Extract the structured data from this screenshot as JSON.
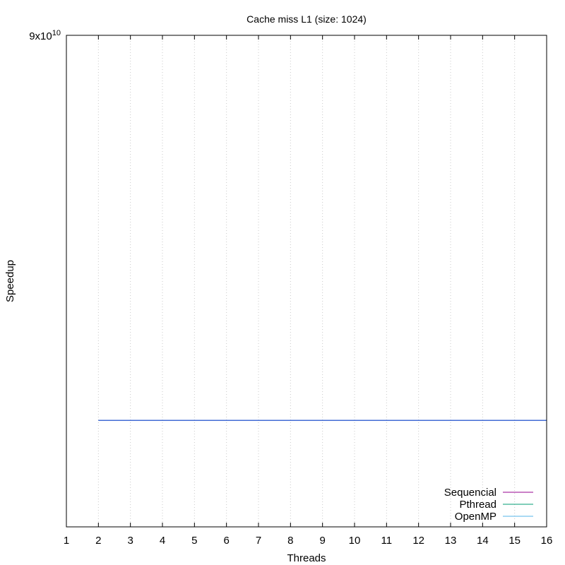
{
  "chart_data": {
    "type": "line",
    "title": "Cache miss L1 (size: 1024)",
    "xlabel": "Threads",
    "ylabel": "Speedup",
    "xlim": [
      1,
      16
    ],
    "ylim": [
      0,
      90000000000
    ],
    "x_ticks": [
      1,
      2,
      3,
      4,
      5,
      6,
      7,
      8,
      9,
      10,
      11,
      12,
      13,
      14,
      15,
      16
    ],
    "y_top_label": {
      "mantissa": "9x10",
      "exponent": "10"
    },
    "grid": {
      "x": true,
      "y": false
    },
    "legend_position": "bottom-right",
    "series": [
      {
        "name": "Sequencial",
        "color": "#94008f",
        "x": [
          2,
          16
        ],
        "y": [
          19500000000,
          19500000000
        ]
      },
      {
        "name": "Pthread",
        "color": "#009e73",
        "x": [
          2,
          16
        ],
        "y": [
          19500000000,
          19500000000
        ]
      },
      {
        "name": "OpenMP",
        "color": "#56b4e9",
        "x": [
          2,
          16
        ],
        "y": [
          19500000000,
          19500000000
        ]
      }
    ],
    "overlay_line": {
      "color": "#3b5bdb",
      "x": [
        2,
        16
      ],
      "y": [
        19500000000,
        19500000000
      ]
    }
  }
}
